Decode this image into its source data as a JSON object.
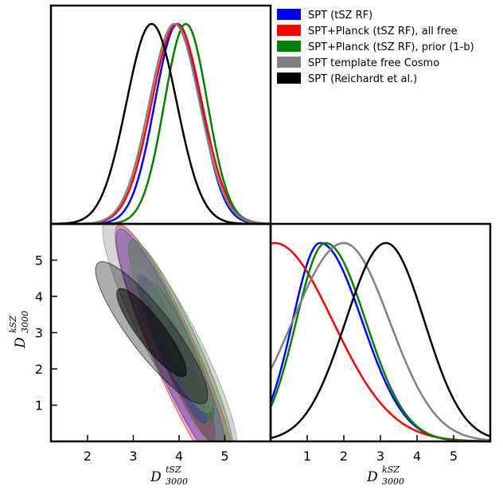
{
  "chart_data": {
    "type": "triangle",
    "legend": {
      "placement": "top-right",
      "entries": [
        {
          "name": "SPT (tSZ RF)",
          "color": "#0000ff"
        },
        {
          "name": "SPT+Planck (tSZ RF), all free",
          "color": "#ff0000"
        },
        {
          "name": "SPT+Planck (tSZ RF), prior (1-b)",
          "color": "#008000"
        },
        {
          "name": "SPT template free Cosmo",
          "color": "#808080"
        },
        {
          "name": "SPT (Reichardt et al.)",
          "color": "#000000"
        }
      ]
    },
    "panels": [
      {
        "id": "tsz-1d",
        "type": "line",
        "xlim": [
          1.2,
          6.0
        ],
        "ylim": [
          0,
          1.0
        ],
        "series": [
          {
            "name": "SPT (tSZ RF)",
            "color": "#0000ff",
            "mean": 3.97,
            "sigma": 0.5
          },
          {
            "name": "SPT+Planck (tSZ RF), all free",
            "color": "#ff0000",
            "mean": 3.95,
            "sigma": 0.55
          },
          {
            "name": "SPT+Planck (tSZ RF), prior (1-b)",
            "color": "#008000",
            "mean": 4.15,
            "sigma": 0.47
          },
          {
            "name": "SPT template free Cosmo",
            "color": "#808080",
            "mean": 3.9,
            "sigma": 0.55
          },
          {
            "name": "SPT (Reichardt et al.)",
            "color": "#000000",
            "mean": 3.4,
            "sigma": 0.55
          }
        ]
      },
      {
        "id": "tsz-ksz-2d",
        "type": "contour",
        "xlim": [
          1.2,
          6.0
        ],
        "ylim": [
          0,
          6.0
        ],
        "xticks": [
          2,
          3,
          4,
          5
        ],
        "yticks": [
          1,
          2,
          3,
          4,
          5
        ],
        "xlabel": "D",
        "xlabel_sup": "tSZ",
        "xlabel_sub": "3000",
        "ylabel": "D",
        "ylabel_sup": "kSZ",
        "ylabel_sub": "3000",
        "contours": [
          {
            "name": "SPT+Planck (tSZ RF), all free",
            "color": "#ff0000",
            "cx": 3.95,
            "cy": 2.3,
            "sx": 0.55,
            "sy": 1.5,
            "rho": -0.92
          },
          {
            "name": "SPT (tSZ RF)",
            "color": "#0000ff",
            "cx": 3.85,
            "cy": 2.55,
            "sx": 0.5,
            "sy": 1.35,
            "rho": -0.92
          },
          {
            "name": "SPT+Planck (tSZ RF), prior (1-b)",
            "color": "#008000",
            "cx": 4.05,
            "cy": 2.5,
            "sx": 0.47,
            "sy": 1.25,
            "rho": -0.92
          },
          {
            "name": "SPT template free Cosmo",
            "color": "#808080",
            "cx": 3.8,
            "cy": 2.85,
            "sx": 0.6,
            "sy": 1.35,
            "rho": -0.9
          },
          {
            "name": "SPT (Reichardt et al.)",
            "color": "#000000",
            "cx": 3.4,
            "cy": 3.0,
            "sx": 0.5,
            "sy": 0.8,
            "rho": -0.88
          }
        ]
      },
      {
        "id": "ksz-1d",
        "type": "line",
        "xlim": [
          0,
          6.0
        ],
        "ylim": [
          0,
          1.0
        ],
        "xticks": [
          1,
          2,
          3,
          4,
          5
        ],
        "xlabel": "D",
        "xlabel_sup": "kSZ",
        "xlabel_sub": "3000",
        "series": [
          {
            "name": "SPT (tSZ RF)",
            "color": "#0000ff",
            "mode": 1.35,
            "sigma_left": 0.75,
            "sigma_right": 1.15
          },
          {
            "name": "SPT+Planck (tSZ RF), all free",
            "color": "#ff0000",
            "mode": 0.1,
            "sigma_left": 1.0,
            "sigma_right": 1.6
          },
          {
            "name": "SPT+Planck (tSZ RF), prior (1-b)",
            "color": "#008000",
            "mode": 1.5,
            "sigma_left": 0.8,
            "sigma_right": 1.1
          },
          {
            "name": "SPT template free Cosmo",
            "color": "#808080",
            "mode": 2.0,
            "sigma_left": 1.4,
            "sigma_right": 1.25
          },
          {
            "name": "SPT (Reichardt et al.)",
            "color": "#000000",
            "mode": 3.15,
            "sigma_left": 1.1,
            "sigma_right": 1.05
          }
        ]
      }
    ]
  }
}
